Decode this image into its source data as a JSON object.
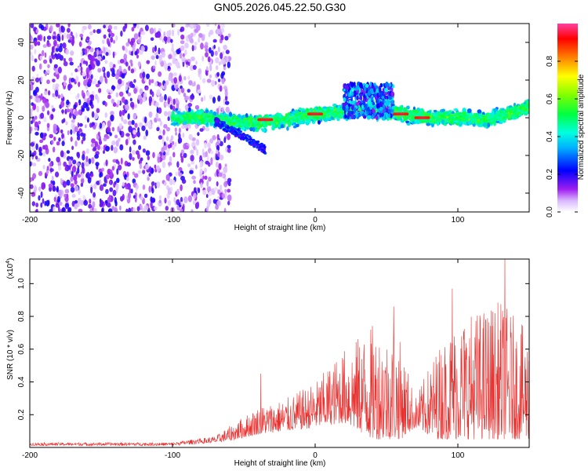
{
  "title": "GN05.2026.045.22.50.G30",
  "chart_data": [
    {
      "type": "heatmap",
      "xlabel": "Height of straight line (km)",
      "ylabel": "Frequency (Hz)",
      "xlim": [
        -200,
        150
      ],
      "ylim": [
        -50,
        50
      ],
      "xticks": [
        -200,
        -100,
        0,
        100
      ],
      "yticks": [
        -40,
        -20,
        0,
        20,
        40
      ],
      "colorbar": {
        "label": "Normalized spectral amplitude",
        "range": [
          0,
          1
        ],
        "ticks": [
          "0.0",
          "0.2",
          "0.4",
          "0.6",
          "0.8"
        ]
      },
      "ridge": [
        {
          "x": -100,
          "y": 0
        },
        {
          "x": -80,
          "y": 0
        },
        {
          "x": -60,
          "y": -2
        },
        {
          "x": -40,
          "y": -3
        },
        {
          "x": -20,
          "y": -1
        },
        {
          "x": 0,
          "y": 2
        },
        {
          "x": 20,
          "y": 3
        },
        {
          "x": 30,
          "y": 5
        },
        {
          "x": 50,
          "y": 3
        },
        {
          "x": 60,
          "y": 2
        },
        {
          "x": 80,
          "y": 0
        },
        {
          "x": 100,
          "y": 0
        },
        {
          "x": 120,
          "y": -1
        },
        {
          "x": 140,
          "y": 3
        },
        {
          "x": 150,
          "y": 6
        }
      ],
      "peaks": [
        {
          "x": -35,
          "y": -1
        },
        {
          "x": 0,
          "y": 2
        },
        {
          "x": 60,
          "y": 2
        },
        {
          "x": 75,
          "y": 0
        }
      ],
      "side_branch": [
        {
          "x": -70,
          "y": -2
        },
        {
          "x": -50,
          "y": -10
        },
        {
          "x": -35,
          "y": -17
        }
      ],
      "bump": {
        "x_range": [
          20,
          55
        ],
        "y_range": [
          0,
          18
        ]
      },
      "noise_region_x": [
        -200,
        -60
      ]
    },
    {
      "type": "line",
      "xlabel": "Height of straight line (km)",
      "ylabel": "SNR (10 * v/v)",
      "scale_label": "(x10",
      "scale_exp": "4",
      "xlim": [
        -200,
        150
      ],
      "ylim": [
        0,
        1.15
      ],
      "xticks": [
        -200,
        -100,
        0,
        100
      ],
      "yticks": [
        0.2,
        0.4,
        0.6,
        0.8,
        1.0
      ],
      "color": "#e8302e",
      "envelope": [
        {
          "x": -200,
          "base": 0.01,
          "peak": 0.03
        },
        {
          "x": -100,
          "base": 0.01,
          "peak": 0.03
        },
        {
          "x": -70,
          "base": 0.03,
          "peak": 0.07
        },
        {
          "x": -60,
          "base": 0.04,
          "peak": 0.13
        },
        {
          "x": -40,
          "base": 0.08,
          "peak": 0.25
        },
        {
          "x": -20,
          "base": 0.1,
          "peak": 0.3
        },
        {
          "x": 0,
          "base": 0.12,
          "peak": 0.4
        },
        {
          "x": 20,
          "base": 0.15,
          "peak": 0.6
        },
        {
          "x": 40,
          "base": 0.05,
          "peak": 0.75
        },
        {
          "x": 60,
          "base": 0.05,
          "peak": 0.65
        },
        {
          "x": 70,
          "base": 0.12,
          "peak": 0.3
        },
        {
          "x": 85,
          "base": 0.05,
          "peak": 0.6
        },
        {
          "x": 100,
          "base": 0.05,
          "peak": 0.8
        },
        {
          "x": 130,
          "base": 0.05,
          "peak": 0.9
        },
        {
          "x": 150,
          "base": 0.05,
          "peak": 0.7
        }
      ],
      "notable_peaks": [
        {
          "x": -38,
          "y": 0.45
        },
        {
          "x": 55,
          "y": 0.86
        },
        {
          "x": 96,
          "y": 0.97
        },
        {
          "x": 133,
          "y": 1.15
        }
      ]
    }
  ]
}
